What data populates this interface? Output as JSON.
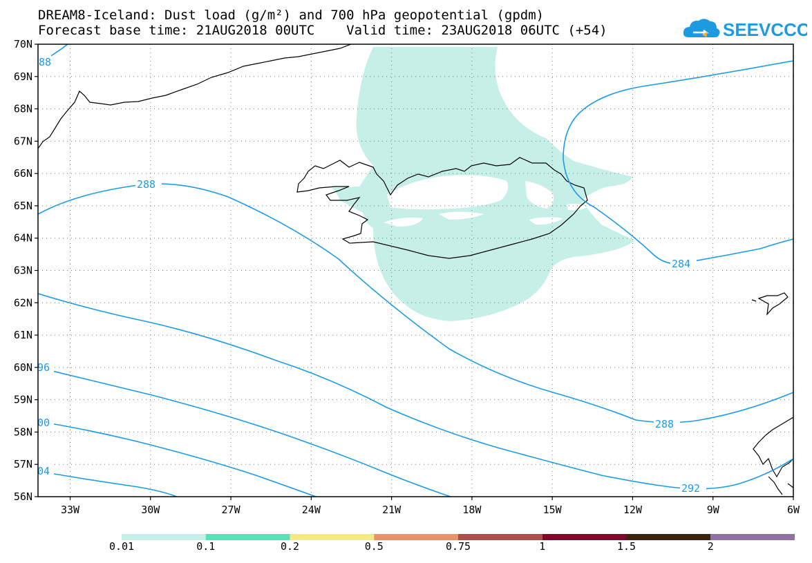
{
  "title": {
    "line1": "DREAM8-Iceland: Dust load (g/m²) and 700 hPa geopotential (gpdm)",
    "forecast_base": "Forecast base time: 21AUG2018 00UTC",
    "valid_time": "Valid time: 23AUG2018 06UTC (+54)"
  },
  "logo": {
    "text": "SEEVCCC",
    "icon": "cloud-logo-icon",
    "color": "#1e9be0"
  },
  "map": {
    "lat_labels": [
      "70N",
      "69N",
      "68N",
      "67N",
      "66N",
      "65N",
      "64N",
      "63N",
      "62N",
      "61N",
      "60N",
      "59N",
      "58N",
      "57N",
      "56N"
    ],
    "lon_labels": [
      "33W",
      "30W",
      "27W",
      "24W",
      "21W",
      "18W",
      "15W",
      "12W",
      "9W",
      "6W"
    ],
    "lat_range": [
      56,
      70
    ],
    "lon_range": [
      -34.2,
      -6
    ],
    "grid": "dotted",
    "contour_color": "#1a9be8",
    "contour_labels": [
      "88",
      "288",
      "284",
      "96",
      "288",
      "00",
      "292",
      "04"
    ],
    "dust_fill_color": "#c6efe8"
  },
  "colorbar": {
    "colors": [
      "#c6efe8",
      "#5de0b8",
      "#f5e88a",
      "#e8946a",
      "#a8504a",
      "#7a0a2a",
      "#3a2410",
      "#9070a0"
    ],
    "labels": [
      "0.01",
      "0.1",
      "0.2",
      "0.5",
      "0.75",
      "1",
      "1.5",
      "2"
    ]
  }
}
